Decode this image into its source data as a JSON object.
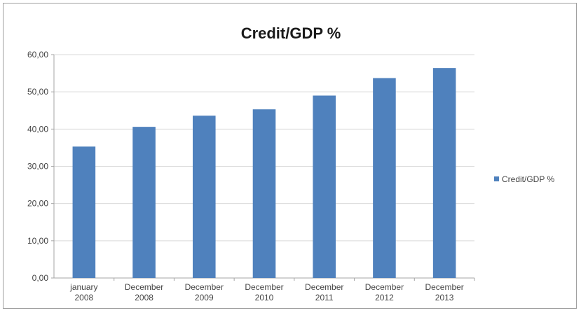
{
  "chart_data": {
    "type": "bar",
    "title": "Credit/GDP %",
    "categories": [
      [
        "january",
        "2008"
      ],
      [
        "December",
        "2008"
      ],
      [
        "December",
        "2009"
      ],
      [
        "December",
        "2010"
      ],
      [
        "December",
        "2011"
      ],
      [
        "December",
        "2012"
      ],
      [
        "December",
        "2013"
      ]
    ],
    "series": [
      {
        "name": "Credit/GDP %",
        "values": [
          35.3,
          40.6,
          43.6,
          45.3,
          49.0,
          53.7,
          56.4
        ]
      }
    ],
    "y_ticks": [
      "0,00",
      "10,00",
      "20,00",
      "30,00",
      "40,00",
      "50,00",
      "60,00"
    ],
    "ylim": [
      0,
      60
    ],
    "grid": true,
    "legend_position": "right",
    "colors": {
      "bar": "#4f81bd",
      "grid": "#d9d9d9",
      "axis": "#a6a6a6"
    }
  }
}
